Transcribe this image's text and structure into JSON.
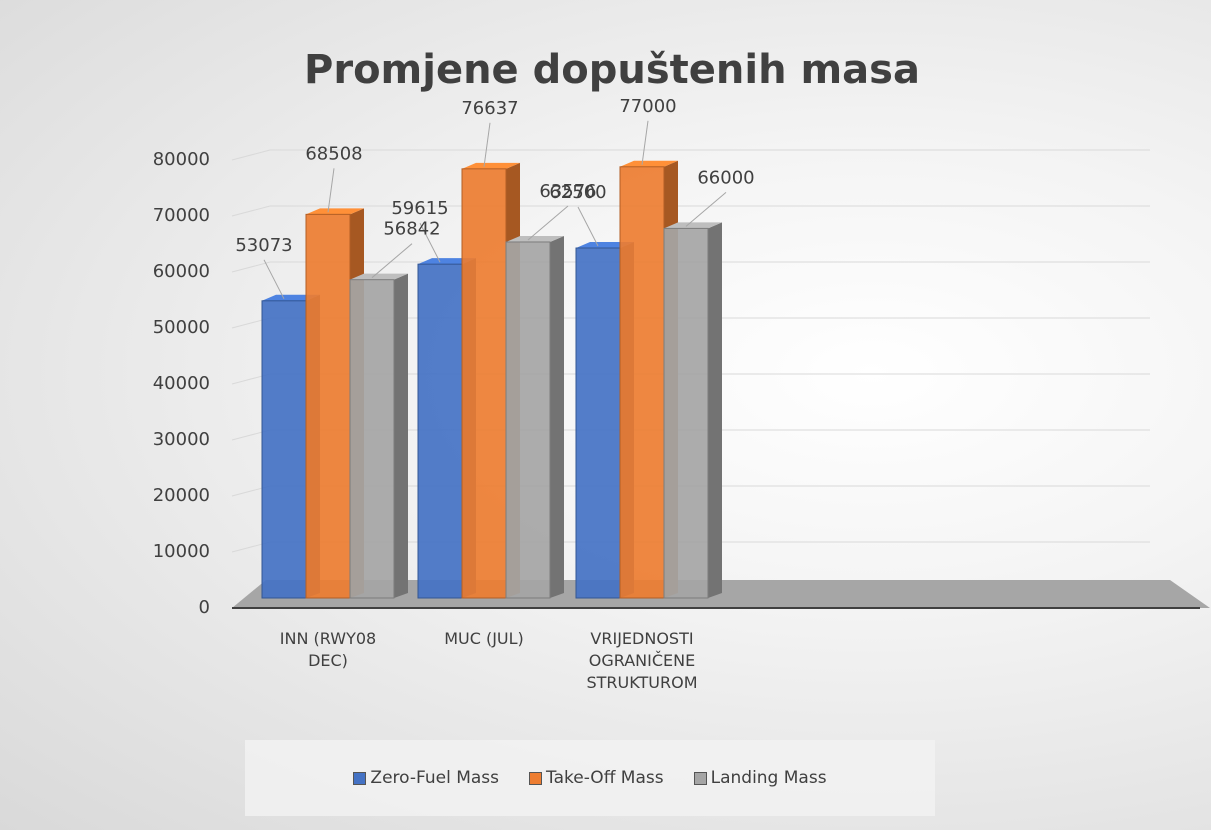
{
  "chart_data": {
    "type": "bar3d",
    "title": "Promjene dopuštenih masa",
    "categories": [
      "INN (RWY08 DEC)",
      "MUC (JUL)",
      "VRIJEDNOSTI OGRANIČENE STRUKTUROM"
    ],
    "series": [
      {
        "name": "Zero-Fuel Mass",
        "color": "#4472c4",
        "values": [
          53073,
          59615,
          62500
        ]
      },
      {
        "name": "Take-Off Mass",
        "color": "#ed7d31",
        "values": [
          68508,
          76637,
          77000
        ]
      },
      {
        "name": "Landing Mass",
        "color": "#a5a5a5",
        "values": [
          56842,
          63576,
          66000
        ]
      }
    ],
    "ylim": [
      0,
      80000
    ],
    "yticks": [
      0,
      10000,
      20000,
      30000,
      40000,
      50000,
      60000,
      70000,
      80000
    ],
    "grid": true
  }
}
